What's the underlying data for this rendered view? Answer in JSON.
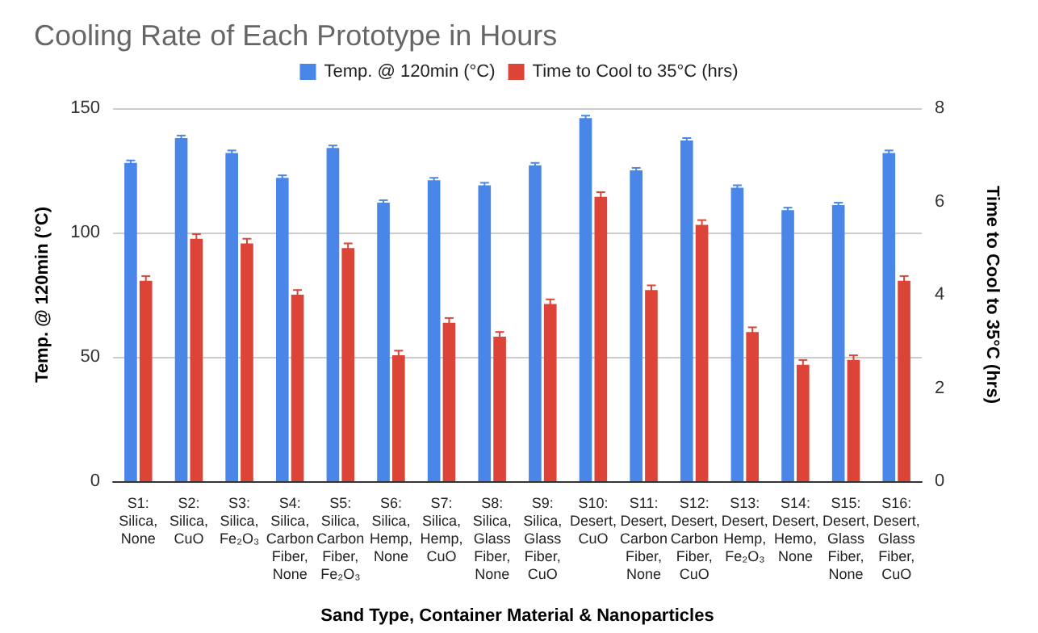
{
  "chart_data": {
    "type": "bar",
    "title": "Cooling Rate of Each Prototype in Hours",
    "xlabel": "Sand Type, Container Material & Nanoparticles",
    "ylabel": "Temp. @ 120min (°C)",
    "y2label": "Time to Cool to 35°C (hrs)",
    "categories": [
      "S1:\nSilica,\nNone",
      "S2:\nSilica,\nCuO",
      "S3:\nSilica,\nFe₂O₃",
      "S4:\nSilica,\nCarbon\nFiber,\nNone",
      "S5:\nSilica,\nCarbon\nFiber,\nFe₂O₃",
      "S6:\nSilica,\nHemp,\nNone",
      "S7:\nSilica,\nHemp,\nCuO",
      "S8:\nSilica,\nGlass\nFiber,\nNone",
      "S9:\nSilica,\nGlass\nFiber,\nCuO",
      "S10:\nDesert,\nCuO",
      "S11:\nDesert,\nCarbon\nFiber,\nNone",
      "S12:\nDesert,\nCarbon\nFiber,\nCuO",
      "S13:\nDesert,\nHemp,\nFe₂O₃",
      "S14:\nDesert,\nHemo,\nNone",
      "S15:\nDesert,\nGlass\nFiber,\nNone",
      "S16:\nDesert,\nGlass\nFiber,\nCuO"
    ],
    "series": [
      {
        "name": "Temp. @ 120min (°C)",
        "color": "#4a86e8",
        "values": [
          128,
          138,
          132,
          122,
          134,
          112,
          121,
          119,
          127,
          146,
          125,
          137,
          118,
          109,
          111,
          132
        ],
        "errors": [
          1,
          1,
          1,
          1,
          1,
          1,
          1,
          1,
          1,
          1,
          1,
          1,
          1,
          1,
          1,
          1
        ]
      },
      {
        "name": "Time to Cool to 35°C (hrs)",
        "color": "#db4437",
        "axis": "y2",
        "values": [
          4.3,
          5.2,
          5.1,
          4.0,
          5.0,
          2.7,
          3.4,
          3.1,
          3.8,
          6.1,
          4.1,
          5.5,
          3.2,
          2.5,
          2.6,
          4.3
        ],
        "errors": [
          0.1,
          0.1,
          0.1,
          0.1,
          0.1,
          0.1,
          0.1,
          0.1,
          0.1,
          0.1,
          0.1,
          0.1,
          0.1,
          0.1,
          0.1,
          0.1
        ]
      }
    ],
    "ylim": [
      0,
      150
    ],
    "yticks": [
      0,
      50,
      100,
      150
    ],
    "y2lim": [
      0,
      8
    ],
    "y2ticks": [
      0,
      2,
      4,
      6,
      8
    ],
    "grid": "y",
    "legend": "top"
  }
}
